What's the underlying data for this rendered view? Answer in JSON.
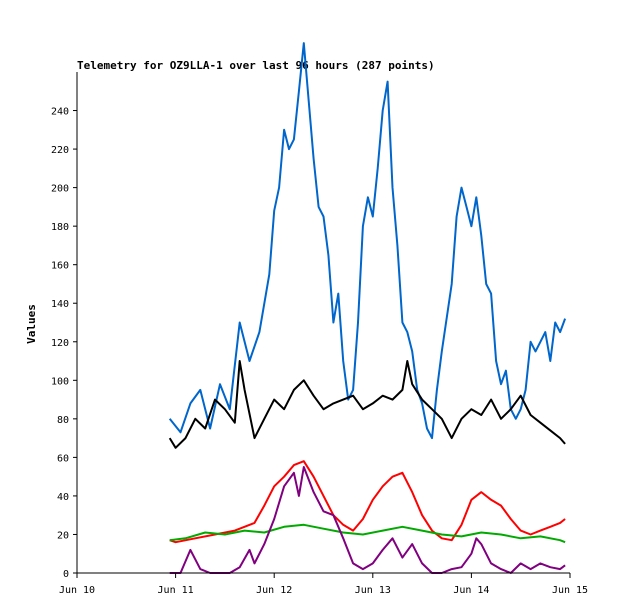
{
  "chart_data": {
    "type": "line",
    "title": "Telemetry for OZ9LLA-1 over last 96 hours (287 points)",
    "xlabel": "",
    "ylabel": "Values",
    "x_ticks": [
      "Jun 10",
      "Jun 11",
      "Jun 12",
      "Jun 13",
      "Jun 14",
      "Jun 15"
    ],
    "x_range_days": [
      10,
      15
    ],
    "ylim": [
      0,
      260
    ],
    "y_ticks": [
      0,
      20,
      40,
      60,
      80,
      100,
      120,
      140,
      160,
      180,
      200,
      220,
      240
    ],
    "grid": false,
    "series": [
      {
        "color": "#0066cc",
        "x": [
          10.94,
          11.05,
          11.15,
          11.25,
          11.35,
          11.45,
          11.55,
          11.65,
          11.75,
          11.85,
          11.95,
          12.0,
          12.05,
          12.1,
          12.15,
          12.2,
          12.25,
          12.3,
          12.35,
          12.4,
          12.45,
          12.5,
          12.55,
          12.6,
          12.65,
          12.7,
          12.75,
          12.8,
          12.85,
          12.9,
          12.95,
          13.0,
          13.05,
          13.1,
          13.15,
          13.2,
          13.25,
          13.3,
          13.35,
          13.4,
          13.45,
          13.5,
          13.55,
          13.6,
          13.65,
          13.7,
          13.8,
          13.85,
          13.9,
          13.95,
          14.0,
          14.05,
          14.1,
          14.15,
          14.2,
          14.25,
          14.3,
          14.35,
          14.4,
          14.45,
          14.5,
          14.55,
          14.6,
          14.65,
          14.7,
          14.75,
          14.8,
          14.85,
          14.9,
          14.95
        ],
        "y": [
          80,
          73,
          88,
          95,
          75,
          98,
          85,
          130,
          110,
          125,
          155,
          188,
          200,
          230,
          220,
          225,
          250,
          275,
          245,
          215,
          190,
          185,
          165,
          130,
          145,
          110,
          90,
          95,
          130,
          180,
          195,
          185,
          210,
          240,
          255,
          200,
          170,
          130,
          125,
          115,
          95,
          88,
          75,
          70,
          95,
          115,
          150,
          185,
          200,
          190,
          180,
          195,
          175,
          150,
          145,
          110,
          98,
          105,
          85,
          80,
          85,
          95,
          120,
          115,
          120,
          125,
          110,
          130,
          125,
          132
        ]
      },
      {
        "color": "#000000",
        "x": [
          10.94,
          11.0,
          11.1,
          11.2,
          11.3,
          11.4,
          11.5,
          11.6,
          11.65,
          11.7,
          11.8,
          11.9,
          12.0,
          12.1,
          12.2,
          12.3,
          12.4,
          12.5,
          12.6,
          12.7,
          12.8,
          12.9,
          13.0,
          13.1,
          13.2,
          13.3,
          13.35,
          13.4,
          13.5,
          13.6,
          13.7,
          13.8,
          13.9,
          14.0,
          14.1,
          14.2,
          14.3,
          14.4,
          14.5,
          14.6,
          14.7,
          14.8,
          14.9,
          14.95
        ],
        "y": [
          70,
          65,
          70,
          80,
          75,
          90,
          85,
          78,
          110,
          95,
          70,
          80,
          90,
          85,
          95,
          100,
          92,
          85,
          88,
          90,
          92,
          85,
          88,
          92,
          90,
          95,
          110,
          98,
          90,
          85,
          80,
          70,
          80,
          85,
          82,
          90,
          80,
          85,
          92,
          82,
          78,
          74,
          70,
          67
        ]
      },
      {
        "color": "#ff0000",
        "x": [
          10.94,
          11.0,
          11.2,
          11.4,
          11.6,
          11.8,
          11.9,
          12.0,
          12.1,
          12.2,
          12.3,
          12.4,
          12.5,
          12.6,
          12.7,
          12.8,
          12.9,
          13.0,
          13.1,
          13.2,
          13.3,
          13.4,
          13.5,
          13.6,
          13.7,
          13.8,
          13.9,
          14.0,
          14.1,
          14.2,
          14.3,
          14.4,
          14.5,
          14.6,
          14.7,
          14.8,
          14.9,
          14.95
        ],
        "y": [
          17,
          16,
          18,
          20,
          22,
          26,
          35,
          45,
          50,
          56,
          58,
          50,
          40,
          30,
          25,
          22,
          28,
          38,
          45,
          50,
          52,
          42,
          30,
          22,
          18,
          17,
          25,
          38,
          42,
          38,
          35,
          28,
          22,
          20,
          22,
          24,
          26,
          28
        ]
      },
      {
        "color": "#00aa00",
        "x": [
          10.94,
          11.1,
          11.3,
          11.5,
          11.7,
          11.9,
          12.1,
          12.3,
          12.5,
          12.7,
          12.9,
          13.1,
          13.3,
          13.5,
          13.7,
          13.9,
          14.1,
          14.3,
          14.5,
          14.7,
          14.9,
          14.95
        ],
        "y": [
          17,
          18,
          21,
          20,
          22,
          21,
          24,
          25,
          23,
          21,
          20,
          22,
          24,
          22,
          20,
          19,
          21,
          20,
          18,
          19,
          17,
          16
        ]
      },
      {
        "color": "#800080",
        "x": [
          10.94,
          11.05,
          11.15,
          11.25,
          11.35,
          11.45,
          11.55,
          11.65,
          11.75,
          11.8,
          11.9,
          12.0,
          12.1,
          12.2,
          12.25,
          12.3,
          12.4,
          12.5,
          12.6,
          12.7,
          12.8,
          12.9,
          13.0,
          13.1,
          13.2,
          13.3,
          13.4,
          13.5,
          13.6,
          13.7,
          13.8,
          13.9,
          14.0,
          14.05,
          14.1,
          14.2,
          14.3,
          14.4,
          14.5,
          14.6,
          14.7,
          14.8,
          14.9,
          14.95
        ],
        "y": [
          0,
          0,
          12,
          2,
          0,
          0,
          0,
          3,
          12,
          5,
          15,
          28,
          45,
          52,
          40,
          55,
          42,
          32,
          30,
          18,
          5,
          2,
          5,
          12,
          18,
          8,
          15,
          5,
          0,
          0,
          2,
          3,
          10,
          18,
          15,
          5,
          2,
          0,
          5,
          2,
          5,
          3,
          2,
          4
        ]
      }
    ]
  }
}
